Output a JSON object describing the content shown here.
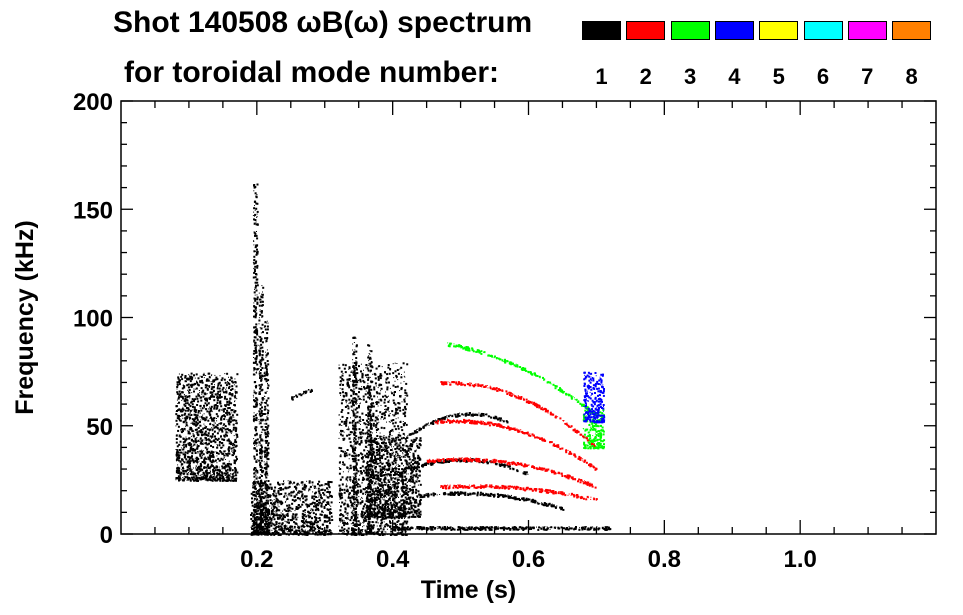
{
  "header": {
    "title_line1": "Shot 140508 ωB(ω) spectrum",
    "title_line2": "for toroidal mode number:"
  },
  "legend": {
    "items": [
      {
        "label": "1",
        "color": "#000000"
      },
      {
        "label": "2",
        "color": "#ff0000"
      },
      {
        "label": "3",
        "color": "#00ff00"
      },
      {
        "label": "4",
        "color": "#0000ff"
      },
      {
        "label": "5",
        "color": "#ffff00"
      },
      {
        "label": "6",
        "color": "#00ffff"
      },
      {
        "label": "7",
        "color": "#ff00ff"
      },
      {
        "label": "8",
        "color": "#ff8000"
      }
    ]
  },
  "chart_data": {
    "type": "heatmap",
    "title": "Shot 140508 ωB(ω) spectrum for toroidal mode number:",
    "xlabel": "Time (s)",
    "ylabel": "Frequency (kHz)",
    "xlim": [
      0.0,
      1.2
    ],
    "ylim": [
      0,
      200
    ],
    "xticks": [
      0.2,
      0.4,
      0.6,
      0.8,
      1.0
    ],
    "xtick_labels": [
      "0.2",
      "0.4",
      "0.6",
      "0.8",
      "1.0"
    ],
    "yticks": [
      0,
      50,
      100,
      150,
      200
    ],
    "ytick_labels": [
      "0",
      "50",
      "100",
      "150",
      "200"
    ],
    "data_time_range_s": [
      0.08,
      0.72
    ],
    "spectral_features": [
      {
        "mode": 1,
        "kind": "patch",
        "t": [
          0.08,
          0.17
        ],
        "f": [
          25,
          75
        ]
      },
      {
        "mode": 1,
        "kind": "spike",
        "t": 0.197,
        "f": [
          0,
          162
        ]
      },
      {
        "mode": 1,
        "kind": "spike",
        "t": 0.213,
        "f": [
          0,
          100
        ]
      },
      {
        "mode": 1,
        "kind": "spike",
        "t": 0.205,
        "f": [
          0,
          115
        ]
      },
      {
        "mode": 1,
        "kind": "patch",
        "t": [
          0.19,
          0.31
        ],
        "f": [
          0,
          25
        ]
      },
      {
        "mode": 1,
        "kind": "line",
        "t": [
          0.25,
          0.28
        ],
        "f": [
          63,
          67
        ]
      },
      {
        "mode": 1,
        "kind": "patch",
        "t": [
          0.32,
          0.42
        ],
        "f": [
          0,
          80
        ]
      },
      {
        "mode": 1,
        "kind": "spike",
        "t": 0.343,
        "f": [
          0,
          92
        ]
      },
      {
        "mode": 1,
        "kind": "spike",
        "t": 0.365,
        "f": [
          0,
          88
        ]
      },
      {
        "mode": 1,
        "kind": "patch",
        "t": [
          0.36,
          0.44
        ],
        "f": [
          8,
          45
        ]
      },
      {
        "mode": 1,
        "kind": "chirp",
        "t": [
          0.42,
          0.57
        ],
        "f": [
          45,
          62,
          52
        ]
      },
      {
        "mode": 1,
        "kind": "chirp",
        "t": [
          0.42,
          0.6
        ],
        "f": [
          30,
          40,
          28
        ]
      },
      {
        "mode": 1,
        "kind": "chirp",
        "t": [
          0.44,
          0.65
        ],
        "f": [
          18,
          22,
          12
        ]
      },
      {
        "mode": 1,
        "kind": "line",
        "t": [
          0.4,
          0.72
        ],
        "f": [
          3,
          3
        ]
      },
      {
        "mode": 2,
        "kind": "chirp",
        "t": [
          0.47,
          0.7
        ],
        "f": [
          70,
          72,
          40
        ]
      },
      {
        "mode": 2,
        "kind": "chirp",
        "t": [
          0.46,
          0.7
        ],
        "f": [
          52,
          56,
          30
        ]
      },
      {
        "mode": 2,
        "kind": "chirp",
        "t": [
          0.45,
          0.7
        ],
        "f": [
          34,
          38,
          22
        ]
      },
      {
        "mode": 2,
        "kind": "chirp",
        "t": [
          0.47,
          0.7
        ],
        "f": [
          22,
          24,
          16
        ]
      },
      {
        "mode": 3,
        "kind": "chirp",
        "t": [
          0.48,
          0.7
        ],
        "f": [
          88,
          82,
          55
        ]
      },
      {
        "mode": 3,
        "kind": "patch",
        "t": [
          0.68,
          0.71
        ],
        "f": [
          40,
          58
        ]
      },
      {
        "mode": 4,
        "kind": "patch",
        "t": [
          0.68,
          0.71
        ],
        "f": [
          52,
          75
        ]
      }
    ]
  },
  "axes": {
    "xlabel": "Time (s)",
    "ylabel": "Frequency (kHz)",
    "xtick_labels": [
      "0.2",
      "0.4",
      "0.6",
      "0.8",
      "1.0"
    ],
    "ytick_labels": [
      "0",
      "50",
      "100",
      "150",
      "200"
    ]
  }
}
